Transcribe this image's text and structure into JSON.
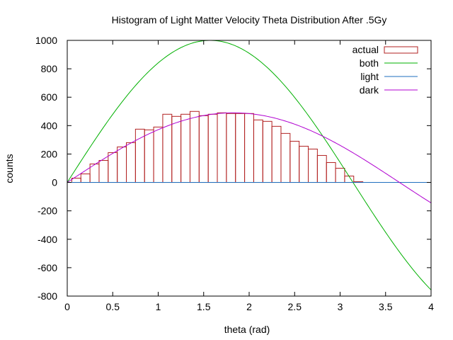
{
  "chart_data": {
    "type": "bar",
    "title": "Histogram of Light Matter Velocity Theta Distribution After .5Gy",
    "xlabel": "theta (rad)",
    "ylabel": "counts",
    "xlim": [
      0,
      4
    ],
    "ylim": [
      -800,
      1000
    ],
    "xticks": [
      0,
      0.5,
      1,
      1.5,
      2,
      2.5,
      3,
      3.5,
      4
    ],
    "xtick_labels": [
      "0",
      "0.5",
      "1",
      "1.5",
      "2",
      "2.5",
      "3",
      "3.5",
      "4"
    ],
    "yticks": [
      -800,
      -600,
      -400,
      -200,
      0,
      200,
      400,
      600,
      800,
      1000
    ],
    "ytick_labels": [
      "-800",
      "-600",
      "-400",
      "-200",
      "0",
      "200",
      "400",
      "600",
      "800",
      "1000"
    ],
    "grid": false,
    "legend_position": "top-right",
    "bin_width": 0.1,
    "histogram": {
      "name": "actual",
      "color": "#b22222",
      "bin_starts": [
        0.05,
        0.15,
        0.25,
        0.35,
        0.45,
        0.55,
        0.65,
        0.75,
        0.85,
        0.95,
        1.05,
        1.15,
        1.25,
        1.35,
        1.45,
        1.55,
        1.65,
        1.75,
        1.85,
        1.95,
        2.05,
        2.15,
        2.25,
        2.35,
        2.45,
        2.55,
        2.65,
        2.75,
        2.85,
        2.95,
        3.05,
        3.15
      ],
      "values": [
        30,
        60,
        130,
        155,
        210,
        250,
        280,
        375,
        370,
        390,
        480,
        465,
        480,
        500,
        470,
        480,
        490,
        485,
        485,
        485,
        440,
        430,
        395,
        345,
        290,
        255,
        235,
        190,
        140,
        100,
        45,
        5
      ]
    },
    "series": [
      {
        "name": "both",
        "color": "#00b000",
        "amplitude": 1000,
        "omega": 1.0,
        "y_key": "both"
      },
      {
        "name": "light",
        "color": "#1f6fbf",
        "amplitude": 0,
        "omega": 1.0,
        "y_key": "light"
      },
      {
        "name": "dark",
        "color": "#b000d0",
        "amplitude": 490,
        "omega": 0.86,
        "y_key": "dark"
      }
    ],
    "baseline": {
      "value": 0,
      "color": "#b22222"
    }
  }
}
